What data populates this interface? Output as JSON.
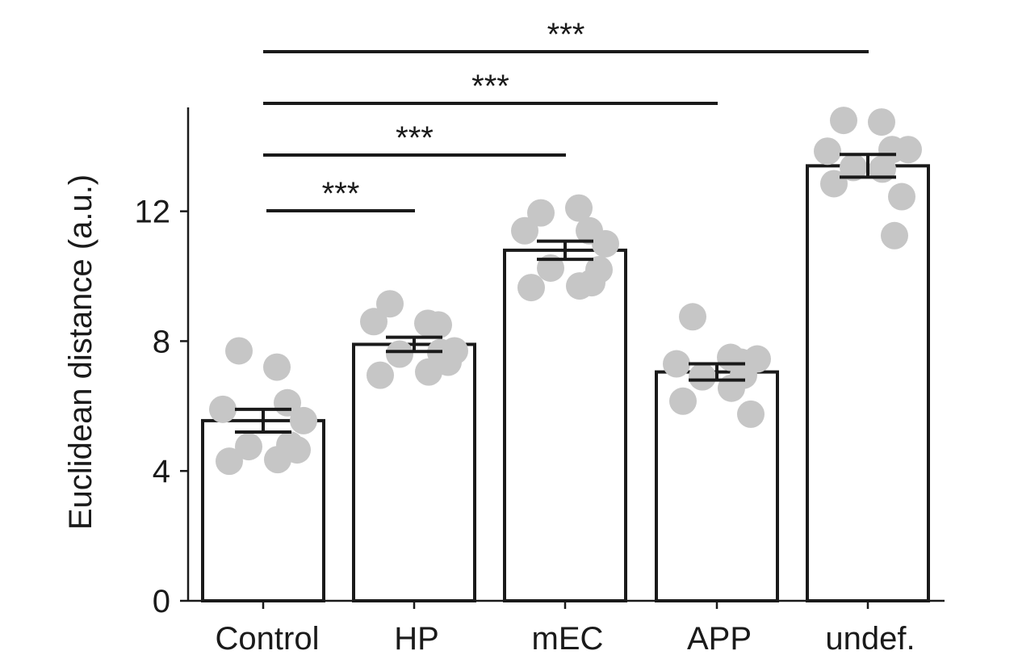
{
  "chart_data": {
    "type": "bar",
    "ylabel": "Euclidean distance (a.u.)",
    "xlabel": "",
    "ylim": [
      0,
      15.2
    ],
    "yticks": [
      0,
      4,
      8,
      12
    ],
    "grid": false,
    "categories": [
      "Control",
      "HP",
      "mEC",
      "APP",
      "undef."
    ],
    "values": [
      5.55,
      7.9,
      10.8,
      7.05,
      13.4
    ],
    "sem": [
      0.35,
      0.22,
      0.28,
      0.25,
      0.35
    ],
    "points": [
      [
        7.7,
        7.2,
        6.1,
        5.9,
        5.55,
        4.75,
        4.35,
        4.3,
        4.65,
        4.8
      ],
      [
        9.15,
        8.55,
        8.5,
        8.6,
        7.7,
        7.6,
        7.05,
        6.95,
        7.35,
        7.65
      ],
      [
        11.95,
        12.1,
        11.4,
        11.4,
        11.0,
        10.25,
        9.7,
        9.65,
        10.2,
        9.8
      ],
      [
        8.75,
        7.5,
        7.35,
        7.3,
        7.45,
        6.9,
        6.55,
        6.15,
        5.75,
        6.95
      ],
      [
        14.8,
        14.75,
        13.9,
        13.85,
        13.9,
        13.35,
        13.3,
        12.85,
        12.45,
        11.25
      ]
    ],
    "comparisons": [
      {
        "from": "Control",
        "to": "HP",
        "label": "***"
      },
      {
        "from": "Control",
        "to": "mEC",
        "label": "***"
      },
      {
        "from": "Control",
        "to": "APP",
        "label": "***"
      },
      {
        "from": "Control",
        "to": "undef.",
        "label": "***"
      }
    ],
    "colors": {
      "bar_fill": "#ffffff",
      "bar_stroke": "#1a1a1a",
      "point": "#c6c6c6",
      "axis": "#1a1a1a"
    }
  }
}
